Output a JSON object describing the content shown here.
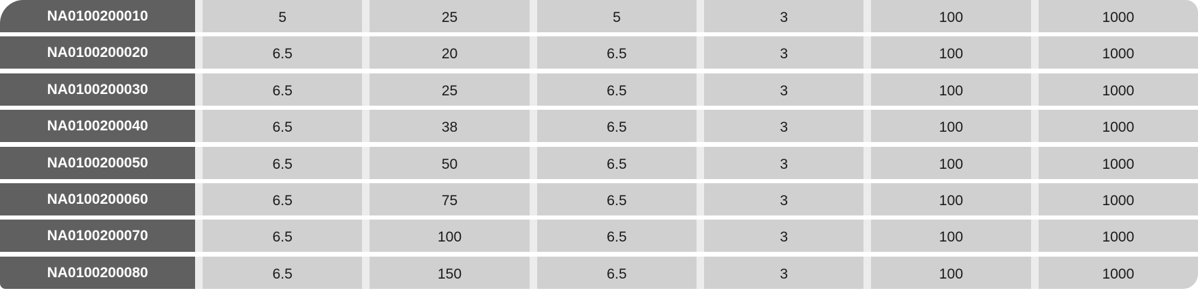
{
  "table": {
    "rows": [
      {
        "code": "NA0100200010",
        "values": [
          "5",
          "25",
          "5",
          "3",
          "100",
          "1000"
        ]
      },
      {
        "code": "NA0100200020",
        "values": [
          "6.5",
          "20",
          "6.5",
          "3",
          "100",
          "1000"
        ]
      },
      {
        "code": "NA0100200030",
        "values": [
          "6.5",
          "25",
          "6.5",
          "3",
          "100",
          "1000"
        ]
      },
      {
        "code": "NA0100200040",
        "values": [
          "6.5",
          "38",
          "6.5",
          "3",
          "100",
          "1000"
        ]
      },
      {
        "code": "NA0100200050",
        "values": [
          "6.5",
          "50",
          "6.5",
          "3",
          "100",
          "1000"
        ]
      },
      {
        "code": "NA0100200060",
        "values": [
          "6.5",
          "75",
          "6.5",
          "3",
          "100",
          "1000"
        ]
      },
      {
        "code": "NA0100200070",
        "values": [
          "6.5",
          "100",
          "6.5",
          "3",
          "100",
          "1000"
        ]
      },
      {
        "code": "NA0100200080",
        "values": [
          "6.5",
          "150",
          "6.5",
          "3",
          "100",
          "1000"
        ]
      }
    ]
  },
  "colors": {
    "code_bg": "#606060",
    "cell_bg": "#d0d0d0",
    "column_gap": "#ececec"
  }
}
